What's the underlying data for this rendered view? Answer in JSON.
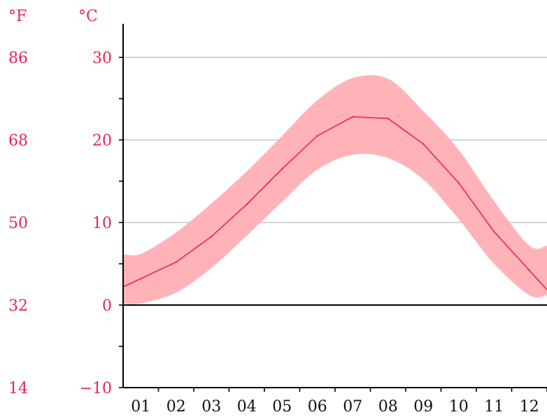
{
  "chart_data": {
    "type": "line",
    "title": "",
    "xlabel": "",
    "ylabel": "",
    "units": {
      "fahrenheit": "°F",
      "celsius": "°C"
    },
    "categories": [
      "01",
      "02",
      "03",
      "04",
      "05",
      "06",
      "07",
      "08",
      "09",
      "10",
      "11",
      "12"
    ],
    "ylim": [
      -10,
      34
    ],
    "yticks_celsius": [
      30,
      20,
      10,
      0,
      -10
    ],
    "yticks_fahrenheit": [
      86,
      68,
      50,
      32,
      14
    ],
    "zero_line": true,
    "grid": true,
    "series": [
      {
        "values": [
          3.2,
          5.2,
          8.3,
          12.2,
          16.5,
          20.5,
          22.8,
          22.6,
          19.5,
          14.8,
          8.9,
          4.2
        ],
        "range_low": [
          0.2,
          1.5,
          4.5,
          8.4,
          12.5,
          16.4,
          18.2,
          17.8,
          15.2,
          10.4,
          5.0,
          1.2
        ],
        "range_high": [
          6.2,
          8.8,
          12.3,
          16.2,
          20.5,
          24.8,
          27.5,
          27.4,
          23.5,
          18.8,
          12.6,
          7.2
        ]
      }
    ],
    "colors": {
      "line": "#e8254f",
      "band": "#ffb3b8",
      "labels": "#e8254f",
      "axis": "#000000",
      "grid": "#b9b9b9"
    }
  }
}
